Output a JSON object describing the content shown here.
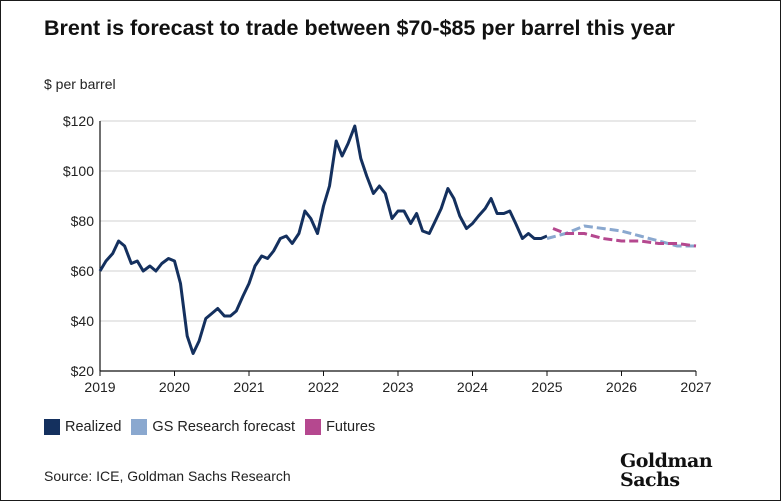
{
  "title": "Brent is forecast to trade between $70-$85 per barrel this year",
  "unit_label": "$ per barrel",
  "source": "Source: ICE, Goldman Sachs Research",
  "logo": {
    "line1": "Goldman",
    "line2": "Sachs"
  },
  "colors": {
    "realized": "#14305e",
    "gs_forecast": "#8aa8cf",
    "futures": "#b5488f",
    "axis": "#111111",
    "grid": "#d0d0d0"
  },
  "chart_data": {
    "type": "line",
    "title": "Brent is forecast to trade between $70-$85 per barrel this year",
    "ylabel": "$ per barrel",
    "xlabel": "",
    "xlim": [
      2019,
      2027
    ],
    "ylim": [
      20,
      120
    ],
    "y_ticks": [
      20,
      40,
      60,
      80,
      100,
      120
    ],
    "y_tick_labels": [
      "$20",
      "$40",
      "$60",
      "$80",
      "$100",
      "$120"
    ],
    "x_ticks": [
      2019,
      2020,
      2021,
      2022,
      2023,
      2024,
      2025,
      2026,
      2027
    ],
    "x_tick_labels": [
      "2019",
      "2020",
      "2021",
      "2022",
      "2023",
      "2024",
      "2025",
      "2026",
      "2027"
    ],
    "grid": true,
    "legend_position": "bottom-left",
    "series": [
      {
        "name": "Realized",
        "style": "solid",
        "x": [
          2019.0,
          2019.08,
          2019.17,
          2019.25,
          2019.33,
          2019.42,
          2019.5,
          2019.58,
          2019.67,
          2019.75,
          2019.83,
          2019.92,
          2020.0,
          2020.08,
          2020.17,
          2020.25,
          2020.33,
          2020.42,
          2020.5,
          2020.58,
          2020.67,
          2020.75,
          2020.83,
          2020.92,
          2021.0,
          2021.08,
          2021.17,
          2021.25,
          2021.33,
          2021.42,
          2021.5,
          2021.58,
          2021.67,
          2021.75,
          2021.83,
          2021.92,
          2022.0,
          2022.08,
          2022.17,
          2022.25,
          2022.33,
          2022.42,
          2022.5,
          2022.58,
          2022.67,
          2022.75,
          2022.83,
          2022.92,
          2023.0,
          2023.08,
          2023.17,
          2023.25,
          2023.33,
          2023.42,
          2023.5,
          2023.58,
          2023.67,
          2023.75,
          2023.83,
          2023.92,
          2024.0,
          2024.08,
          2024.17,
          2024.25,
          2024.33,
          2024.42,
          2024.5,
          2024.58,
          2024.67,
          2024.75,
          2024.83,
          2024.92,
          2025.0
        ],
        "values": [
          60,
          64,
          67,
          72,
          70,
          63,
          64,
          60,
          62,
          60,
          63,
          65,
          64,
          55,
          34,
          27,
          32,
          41,
          43,
          45,
          42,
          42,
          44,
          50,
          55,
          62,
          66,
          65,
          68,
          73,
          74,
          71,
          75,
          84,
          81,
          75,
          86,
          94,
          112,
          106,
          111,
          118,
          105,
          98,
          91,
          94,
          91,
          81,
          84,
          84,
          79,
          83,
          76,
          75,
          80,
          85,
          93,
          89,
          82,
          77,
          79,
          82,
          85,
          89,
          83,
          83,
          84,
          79,
          73,
          75,
          73,
          73,
          74
        ]
      },
      {
        "name": "GS Research forecast",
        "style": "dashed",
        "x": [
          2025.0,
          2025.25,
          2025.5,
          2025.75,
          2026.0,
          2026.25,
          2026.5,
          2026.75,
          2027.0
        ],
        "values": [
          73,
          75,
          78,
          77,
          76,
          74,
          72,
          70,
          70
        ]
      },
      {
        "name": "Futures",
        "style": "dashed",
        "x": [
          2025.08,
          2025.25,
          2025.5,
          2025.75,
          2026.0,
          2026.25,
          2026.5,
          2026.75,
          2027.0
        ],
        "values": [
          77,
          75,
          75,
          73,
          72,
          72,
          71,
          71,
          70
        ]
      }
    ]
  }
}
